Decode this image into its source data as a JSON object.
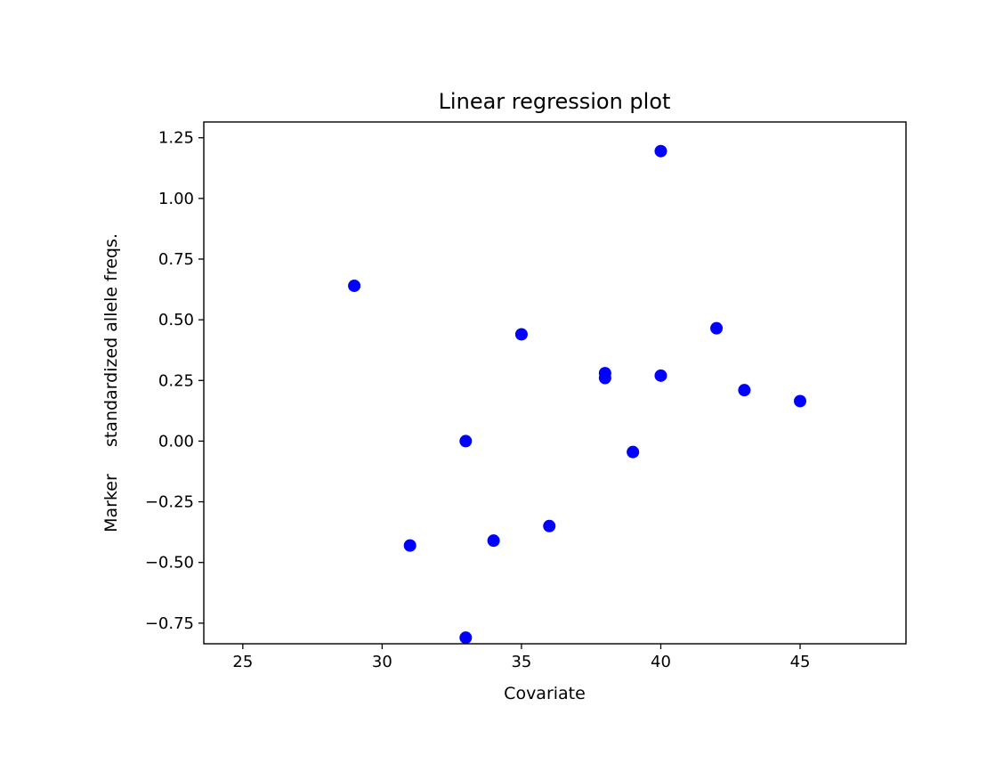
{
  "chart_data": {
    "type": "scatter",
    "title": "Linear regression plot",
    "xlabel": "Covariate",
    "ylabel": "Marker     standardized allele freqs.",
    "xlim": [
      23.6,
      48.8
    ],
    "ylim": [
      -0.835,
      1.315
    ],
    "x_ticks": [
      25,
      30,
      35,
      40,
      45
    ],
    "x_tick_labels": [
      "25",
      "30",
      "35",
      "40",
      "45"
    ],
    "y_ticks": [
      -0.75,
      -0.5,
      -0.25,
      0.0,
      0.25,
      0.5,
      0.75,
      1.0,
      1.25
    ],
    "y_tick_labels": [
      "−0.75",
      "−0.50",
      "−0.25",
      "0.00",
      "0.25",
      "0.50",
      "0.75",
      "1.00",
      "1.25"
    ],
    "grid": false,
    "marker_color": "#0000ff",
    "points": [
      {
        "x": 29,
        "y": 0.64
      },
      {
        "x": 31,
        "y": -0.43
      },
      {
        "x": 33,
        "y": 0.0
      },
      {
        "x": 33,
        "y": -0.81
      },
      {
        "x": 34,
        "y": -0.41
      },
      {
        "x": 35,
        "y": 0.44
      },
      {
        "x": 36,
        "y": -0.35
      },
      {
        "x": 38,
        "y": 0.28
      },
      {
        "x": 38,
        "y": 0.26
      },
      {
        "x": 39,
        "y": -0.045
      },
      {
        "x": 40,
        "y": 1.195
      },
      {
        "x": 40,
        "y": 0.27
      },
      {
        "x": 42,
        "y": 0.465
      },
      {
        "x": 43,
        "y": 0.21
      },
      {
        "x": 45,
        "y": 0.165
      }
    ]
  }
}
